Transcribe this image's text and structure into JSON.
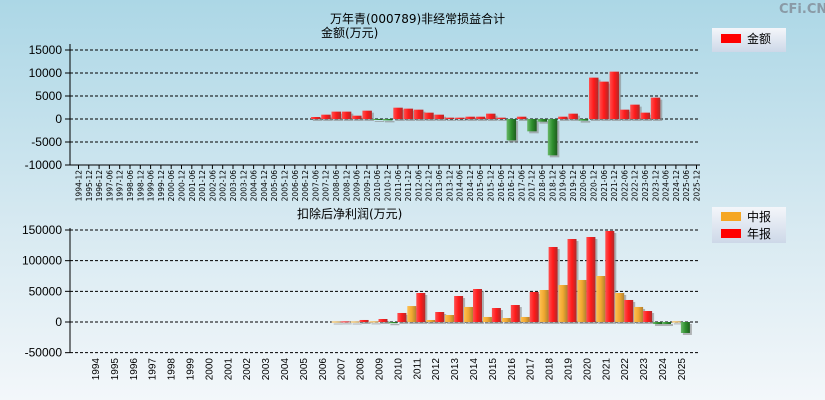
{
  "watermark": "CFi.CN",
  "colors": {
    "positive": "#ff2020",
    "negative": "#2e9a2e",
    "interim": "#f5a623",
    "annual": "#ff2020"
  },
  "chart_data": [
    {
      "type": "bar",
      "title": "万年青(000789)非经常损益合计",
      "ylabel": "金额(万元)",
      "legend": [
        "金额"
      ],
      "legend_position": "top-right",
      "ylim": [
        -10000,
        15000
      ],
      "yticks": [
        15000,
        10000,
        5000,
        0,
        -5000,
        -10000
      ],
      "grid": true,
      "categories": [
        "1994-12",
        "1995-12",
        "1996-12",
        "1997-06",
        "1997-12",
        "1998-06",
        "1998-12",
        "1999-06",
        "1999-12",
        "2000-06",
        "2000-12",
        "2001-06",
        "2001-12",
        "2002-06",
        "2002-12",
        "2003-06",
        "2003-12",
        "2004-06",
        "2004-12",
        "2005-06",
        "2005-12",
        "2006-06",
        "2006-12",
        "2007-06",
        "2007-12",
        "2008-06",
        "2008-12",
        "2009-06",
        "2009-12",
        "2010-06",
        "2010-12",
        "2011-06",
        "2011-12",
        "2012-06",
        "2012-12",
        "2013-06",
        "2013-12",
        "2014-06",
        "2014-12",
        "2015-06",
        "2015-12",
        "2016-06",
        "2016-12",
        "2017-06",
        "2017-12",
        "2018-06",
        "2018-12",
        "2019-06",
        "2019-12",
        "2020-06",
        "2020-12",
        "2021-06",
        "2021-12",
        "2022-06",
        "2022-12",
        "2023-06",
        "2023-12",
        "2024-06",
        "2024-12",
        "2025-06",
        "2025-12"
      ],
      "values": [
        null,
        null,
        null,
        null,
        null,
        null,
        null,
        null,
        null,
        null,
        null,
        null,
        null,
        null,
        null,
        null,
        null,
        null,
        null,
        null,
        null,
        null,
        null,
        435,
        940,
        1600,
        1600,
        720,
        1810,
        -100,
        -300,
        2460,
        2250,
        2030,
        1380,
        940,
        290,
        290,
        500,
        500,
        1160,
        290,
        -4640,
        500,
        -2680,
        -580,
        -7900,
        500,
        1160,
        -360,
        8990,
        8120,
        10290,
        2030,
        3120,
        1380,
        4640,
        null,
        null,
        null,
        null
      ]
    },
    {
      "type": "bar",
      "title": "扣除后净利润(万元)",
      "legend": [
        "中报",
        "年报"
      ],
      "legend_position": "top-right",
      "ylim": [
        -50000,
        150000
      ],
      "yticks": [
        150000,
        100000,
        50000,
        0,
        -50000
      ],
      "grid": true,
      "categories": [
        "1994",
        "1995",
        "1996",
        "1997",
        "1998",
        "1999",
        "2000",
        "2001",
        "2002",
        "2003",
        "2004",
        "2005",
        "2006",
        "2007",
        "2008",
        "2009",
        "2010",
        "2011",
        "2012",
        "2013",
        "2014",
        "2015",
        "2016",
        "2017",
        "2018",
        "2019",
        "2020",
        "2021",
        "2022",
        "2023",
        "2024",
        "2025"
      ],
      "series": [
        {
          "name": "中报",
          "values": [
            null,
            null,
            null,
            null,
            null,
            null,
            null,
            null,
            null,
            null,
            null,
            null,
            null,
            800,
            800,
            1000,
            -2000,
            26000,
            3300,
            11400,
            24500,
            8200,
            6500,
            8200,
            52200,
            60300,
            68500,
            75000,
            47300,
            24500,
            -3300,
            1000
          ]
        },
        {
          "name": "年报",
          "values": [
            null,
            null,
            null,
            null,
            null,
            null,
            null,
            null,
            null,
            null,
            null,
            null,
            null,
            1000,
            3300,
            4900,
            14700,
            47300,
            16300,
            42400,
            53800,
            22800,
            27700,
            48900,
            122300,
            135300,
            138600,
            148400,
            35900,
            17900,
            -3300,
            -17900
          ]
        }
      ]
    }
  ]
}
